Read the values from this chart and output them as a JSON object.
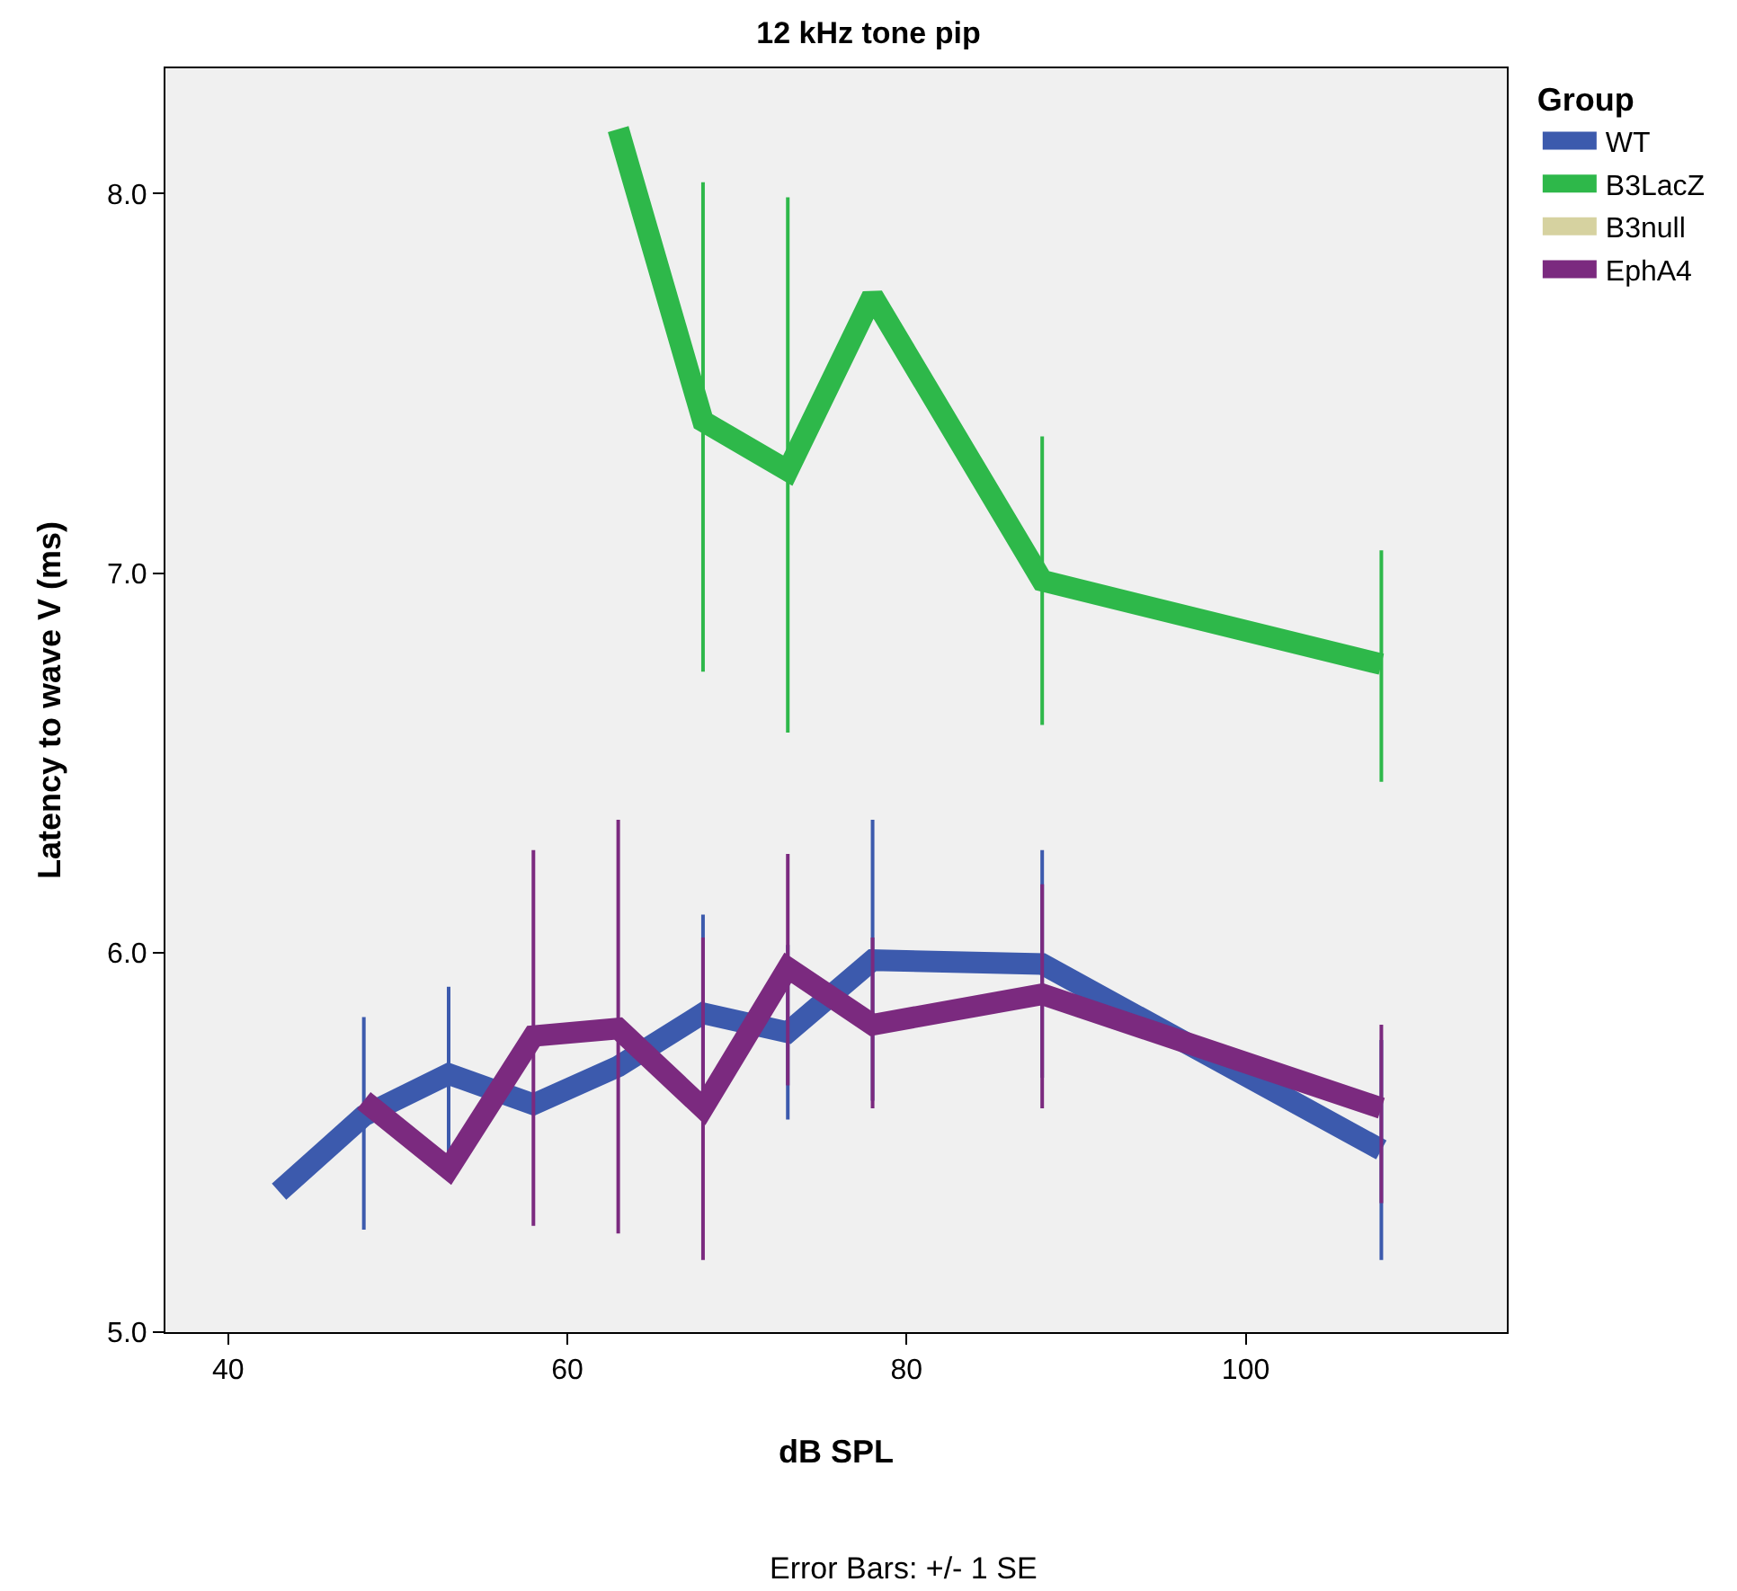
{
  "chart_data": {
    "type": "line",
    "title": "12 kHz tone pip",
    "xlabel": "dB SPL",
    "ylabel": "Latency to wave V (ms)",
    "legend_title": "Group",
    "x": [
      43,
      48,
      53,
      58,
      63,
      68,
      73,
      78,
      88,
      108
    ],
    "series": [
      {
        "name": "WT",
        "color": "#3c5aad",
        "values": [
          5.37,
          5.57,
          5.68,
          5.6,
          5.7,
          5.84,
          5.79,
          5.98,
          5.97,
          5.48
        ],
        "errors": [
          null,
          [
            5.27,
            5.83
          ],
          [
            5.4,
            5.91
          ],
          null,
          null,
          [
            5.58,
            6.1
          ],
          [
            5.56,
            6.02
          ],
          [
            5.61,
            6.35
          ],
          [
            5.67,
            6.27
          ],
          [
            5.19,
            5.77
          ]
        ]
      },
      {
        "name": "B3LacZ",
        "color": "#2eb84a",
        "values": [
          null,
          null,
          null,
          null,
          8.17,
          7.4,
          7.27,
          7.73,
          6.98,
          6.76
        ],
        "errors": [
          null,
          null,
          null,
          null,
          null,
          [
            6.74,
            8.03
          ],
          [
            6.58,
            7.99
          ],
          null,
          [
            6.6,
            7.36
          ],
          [
            6.45,
            7.06
          ]
        ]
      },
      {
        "name": "B3null",
        "color": "#d6d2a0",
        "values": [
          null,
          null,
          null,
          null,
          null,
          null,
          null,
          null,
          null,
          null
        ]
      },
      {
        "name": "EphA4",
        "color": "#7b2a7f",
        "values": [
          null,
          5.61,
          5.43,
          5.78,
          5.8,
          5.59,
          5.96,
          5.81,
          5.89,
          5.59
        ],
        "errors": [
          null,
          null,
          null,
          [
            5.28,
            6.27
          ],
          [
            5.26,
            6.35
          ],
          [
            5.19,
            6.04
          ],
          [
            5.65,
            6.26
          ],
          [
            5.59,
            6.04
          ],
          [
            5.59,
            6.18
          ],
          [
            5.34,
            5.81
          ]
        ]
      }
    ],
    "xlim": [
      36.3,
      115.4
    ],
    "xticks": [
      40,
      60,
      80,
      100
    ],
    "ylim": [
      5.0,
      8.33
    ],
    "yticks": [
      {
        "value": 5,
        "label": "5.0"
      },
      {
        "value": 6,
        "label": "6.0"
      },
      {
        "value": 7,
        "label": "7.0"
      },
      {
        "value": 8,
        "label": "8.0"
      }
    ],
    "grid": false,
    "legend": "right",
    "marker": "none",
    "line_style": "solid",
    "annotations": [
      "Error Bars: +/- 1 SE"
    ]
  }
}
